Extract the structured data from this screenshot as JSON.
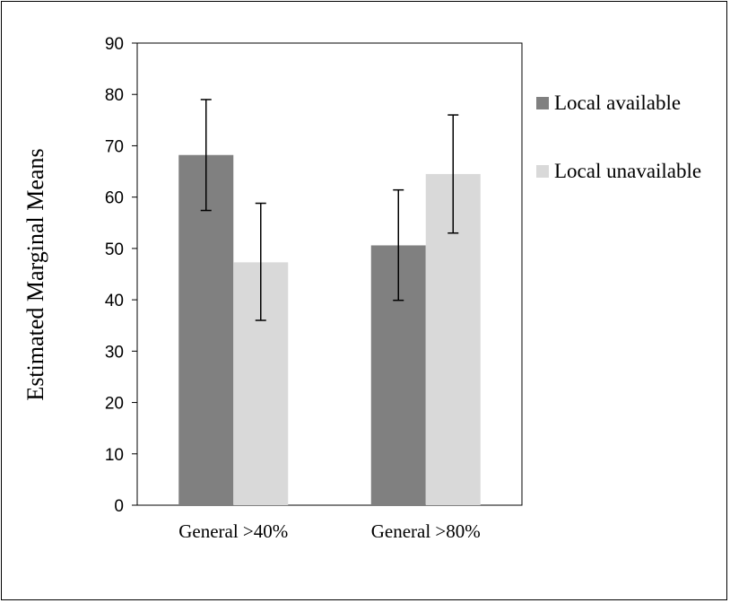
{
  "chart_data": {
    "type": "bar",
    "title": "",
    "xlabel": "",
    "ylabel": "Estimated Marginal Means",
    "ylim": [
      0,
      90
    ],
    "yticks": [
      0,
      10,
      20,
      30,
      40,
      50,
      60,
      70,
      80,
      90
    ],
    "grid": false,
    "legend_position": "right",
    "categories": [
      "General >40%",
      "General >80%"
    ],
    "series": [
      {
        "name": "Local available",
        "color": "#808080",
        "values": [
          68.2,
          50.6
        ],
        "error_low": [
          57.4,
          39.9
        ],
        "error_high": [
          79.0,
          61.4
        ]
      },
      {
        "name": "Local unavailable",
        "color": "#d9d9d9",
        "values": [
          47.3,
          64.5
        ],
        "error_low": [
          36.0,
          53.0
        ],
        "error_high": [
          58.8,
          76.0
        ]
      }
    ]
  }
}
